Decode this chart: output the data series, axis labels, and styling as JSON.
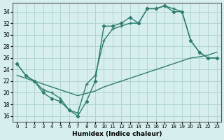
{
  "xlabel": "Humidex (Indice chaleur)",
  "background_color": "#d6eeee",
  "grid_color": "#b0d4d4",
  "line_color": "#2e7d6e",
  "xlim": [
    -0.5,
    23.5
  ],
  "ylim": [
    15,
    35.5
  ],
  "yticks": [
    16,
    18,
    20,
    22,
    24,
    26,
    28,
    30,
    32,
    34
  ],
  "xticks": [
    0,
    1,
    2,
    3,
    4,
    5,
    6,
    7,
    8,
    9,
    10,
    11,
    12,
    13,
    14,
    15,
    16,
    17,
    18,
    19,
    20,
    21,
    22,
    23
  ],
  "series1_x": [
    0,
    1,
    2,
    3,
    4,
    5,
    6,
    7,
    8,
    9,
    10,
    11,
    12,
    13,
    14,
    15,
    16,
    17,
    18,
    19,
    20,
    21,
    22,
    23
  ],
  "series1_y": [
    25,
    23,
    22,
    20,
    19,
    18.5,
    17,
    16,
    18.5,
    22,
    31.5,
    31.5,
    32,
    33,
    32,
    34.5,
    34.5,
    35,
    34,
    34,
    29,
    27,
    26,
    26
  ],
  "series2_x": [
    0,
    1,
    2,
    3,
    4,
    5,
    6,
    7,
    8,
    9,
    10,
    11,
    12,
    13,
    14,
    15,
    16,
    17,
    18,
    19,
    20,
    21,
    22,
    23
  ],
  "series2_y": [
    25,
    23,
    22,
    20.5,
    20,
    19,
    17,
    16.5,
    21.5,
    23,
    29,
    31,
    31.5,
    32,
    32,
    34.5,
    34.5,
    35,
    34.5,
    34,
    29,
    27,
    26,
    26
  ],
  "series3_x": [
    0,
    1,
    2,
    3,
    4,
    5,
    6,
    7,
    8,
    9,
    10,
    11,
    12,
    13,
    14,
    15,
    16,
    17,
    18,
    19,
    20,
    21,
    22,
    23
  ],
  "series3_y": [
    23,
    22.5,
    22,
    21.5,
    21,
    20.5,
    20,
    19.5,
    19.9,
    20.3,
    21,
    21.5,
    22,
    22.5,
    23,
    23.5,
    24,
    24.5,
    25,
    25.5,
    26,
    26.2,
    26.5,
    27
  ]
}
